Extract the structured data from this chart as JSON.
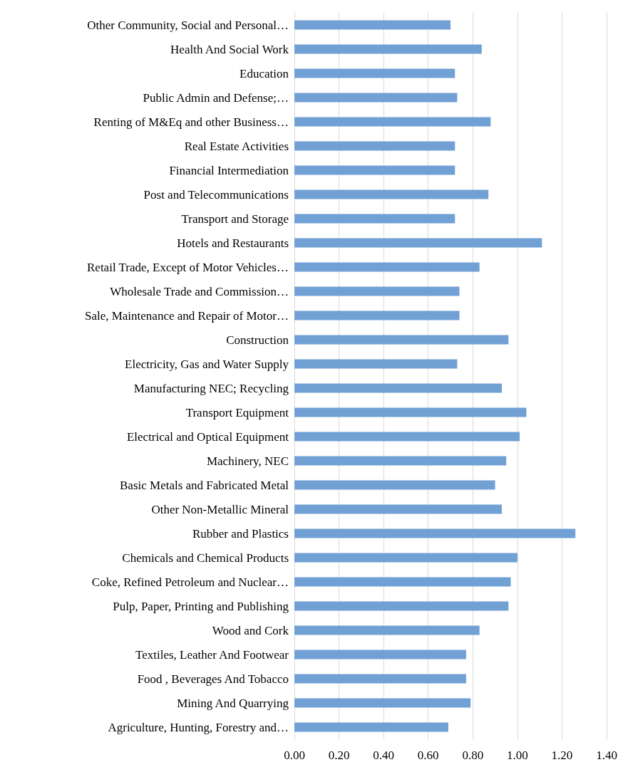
{
  "chart_data": {
    "type": "bar",
    "orientation": "horizontal",
    "categories": [
      "Other Community, Social and Personal…",
      "Health And Social Work",
      "Education",
      "Public Admin and Defense;…",
      "Renting of M&Eq and other Business…",
      "Real Estate Activities",
      "Financial Intermediation",
      "Post and Telecommunications",
      "Transport and Storage",
      "Hotels and Restaurants",
      "Retail Trade, Except of Motor Vehicles…",
      "Wholesale Trade and Commission…",
      "Sale, Maintenance and Repair of Motor…",
      "Construction",
      "Electricity, Gas and Water Supply",
      "Manufacturing NEC; Recycling",
      "Transport Equipment",
      "Electrical and Optical Equipment",
      "Machinery, NEC",
      "Basic Metals and Fabricated Metal",
      "Other Non-Metallic Mineral",
      "Rubber and Plastics",
      "Chemicals and Chemical Products",
      "Coke, Refined Petroleum and Nuclear…",
      "Pulp, Paper, Printing and Publishing",
      "Wood and Cork",
      "Textiles, Leather And Footwear",
      "Food , Beverages And Tobacco",
      "Mining And Quarrying",
      "Agriculture, Hunting, Forestry and…"
    ],
    "values": [
      0.7,
      0.84,
      0.72,
      0.73,
      0.88,
      0.72,
      0.72,
      0.87,
      0.72,
      1.11,
      0.83,
      0.74,
      0.74,
      0.96,
      0.73,
      0.93,
      1.04,
      1.01,
      0.95,
      0.9,
      0.93,
      1.26,
      1.0,
      0.97,
      0.96,
      0.83,
      0.77,
      0.77,
      0.79,
      0.69
    ],
    "color": "#70a0d4",
    "xlim": [
      0,
      1.4
    ],
    "xticks": [
      {
        "value": 0,
        "label": "0.00"
      },
      {
        "value": 0.2,
        "label": "0.20"
      },
      {
        "value": 0.4,
        "label": "0.40"
      },
      {
        "value": 0.6,
        "label": "0.60"
      },
      {
        "value": 0.8,
        "label": "0.80"
      },
      {
        "value": 1.0,
        "label": "1.00"
      },
      {
        "value": 1.2,
        "label": "1.20"
      },
      {
        "value": 1.4,
        "label": "1.40"
      }
    ],
    "grid": "x"
  }
}
